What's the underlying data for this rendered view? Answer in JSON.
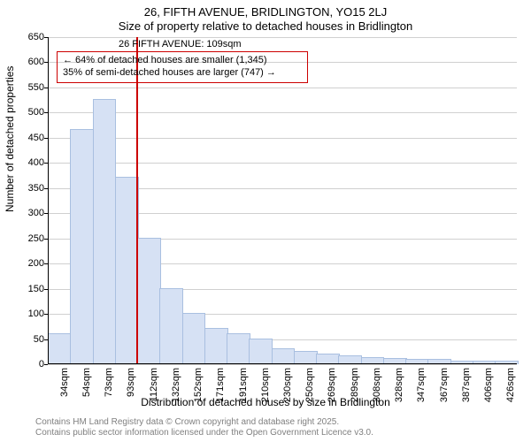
{
  "title_line1": "26, FIFTH AVENUE, BRIDLINGTON, YO15 2LJ",
  "title_line2": "Size of property relative to detached houses in Bridlington",
  "ylabel": "Number of detached properties",
  "xlabel": "Distribution of detached houses by size in Bridlington",
  "chart": {
    "type": "histogram",
    "background_color": "#ffffff",
    "grid_color": "#d0d0d0",
    "axis_color": "#000000",
    "bar_fill": "#d6e1f4",
    "bar_stroke": "#a9bfe0",
    "ylim": [
      0,
      650
    ],
    "ytick_step": 50,
    "categories": [
      "34sqm",
      "54sqm",
      "73sqm",
      "93sqm",
      "112sqm",
      "132sqm",
      "152sqm",
      "171sqm",
      "191sqm",
      "210sqm",
      "230sqm",
      "250sqm",
      "269sqm",
      "289sqm",
      "308sqm",
      "328sqm",
      "347sqm",
      "367sqm",
      "387sqm",
      "406sqm",
      "426sqm"
    ],
    "values": [
      60,
      465,
      525,
      370,
      250,
      150,
      100,
      70,
      60,
      50,
      30,
      25,
      20,
      15,
      12,
      10,
      8,
      8,
      6,
      5,
      5
    ],
    "marker": {
      "index": 4,
      "color": "#cc0000",
      "width": 2
    },
    "label_fontsize": 12,
    "tick_fontsize": 11
  },
  "annotation": {
    "title": "26 FIFTH AVENUE: 109sqm",
    "line1": "← 64% of detached houses are smaller (1,345)",
    "line2": "35% of semi-detached houses are larger (747) →",
    "border_color": "#cc0000",
    "text_color": "#000000"
  },
  "footer": {
    "line1": "Contains HM Land Registry data © Crown copyright and database right 2025.",
    "line2": "Contains public sector information licensed under the Open Government Licence v3.0.",
    "color": "#808080"
  }
}
